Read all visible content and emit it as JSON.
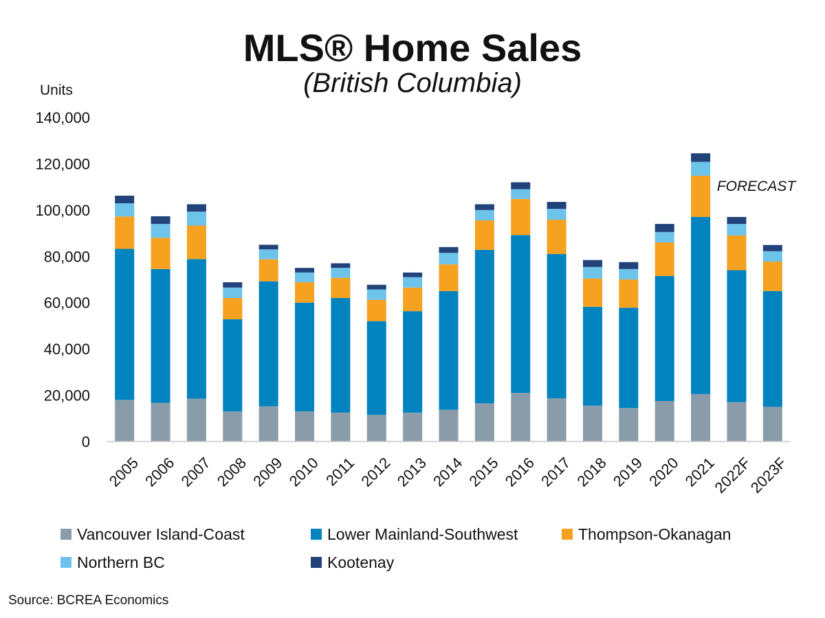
{
  "chart_data": {
    "type": "bar",
    "stacked": true,
    "title": "MLS® Home Sales",
    "subtitle": "(British Columbia)",
    "ylabel": "Units",
    "xlabel": "",
    "ylim": [
      0,
      140000
    ],
    "yticks": [
      0,
      20000,
      40000,
      60000,
      80000,
      100000,
      120000,
      140000
    ],
    "ytick_labels": [
      "0",
      "20,000",
      "40,000",
      "60,000",
      "80,000",
      "100,000",
      "120,000",
      "140,000"
    ],
    "grid": false,
    "legend_position": "bottom",
    "annotation": "FORECAST",
    "categories": [
      "2005",
      "2006",
      "2007",
      "2008",
      "2009",
      "2010",
      "2011",
      "2012",
      "2013",
      "2014",
      "2015",
      "2016",
      "2017",
      "2018",
      "2019",
      "2020",
      "2021",
      "2022F",
      "2023F"
    ],
    "series": [
      {
        "name": "Vancouver Island-Coast",
        "color": "#8a9caa",
        "values": [
          18000,
          16700,
          18500,
          13000,
          15200,
          13000,
          12500,
          11500,
          12500,
          13700,
          16500,
          21000,
          18700,
          15500,
          14500,
          17500,
          20500,
          17000,
          15000
        ]
      },
      {
        "name": "Lower Mainland-Southwest",
        "color": "#0083bf",
        "values": [
          65200,
          57800,
          60300,
          39800,
          54000,
          47000,
          49500,
          40500,
          43800,
          51300,
          66300,
          68200,
          62300,
          42700,
          43300,
          54000,
          76500,
          57000,
          50000
        ]
      },
      {
        "name": "Thompson-Okanagan",
        "color": "#f6a11f",
        "values": [
          14000,
          13500,
          14500,
          9200,
          9500,
          8800,
          8700,
          9200,
          10200,
          11500,
          12700,
          15600,
          14800,
          12200,
          12200,
          14500,
          17800,
          15000,
          12700
        ]
      },
      {
        "name": "Northern BC",
        "color": "#6ec3ea",
        "values": [
          5700,
          6000,
          6000,
          4500,
          4300,
          4200,
          4300,
          4500,
          4500,
          5000,
          4500,
          4200,
          4700,
          5000,
          4500,
          4500,
          6000,
          5000,
          4500
        ]
      },
      {
        "name": "Kootenay",
        "color": "#22427a",
        "values": [
          3300,
          3300,
          3200,
          2300,
          2000,
          2000,
          2000,
          2000,
          2000,
          2500,
          2500,
          3000,
          3000,
          3000,
          3000,
          3500,
          3700,
          3000,
          2700
        ]
      }
    ]
  },
  "footer": {
    "source": "Source: BCREA Economics"
  }
}
